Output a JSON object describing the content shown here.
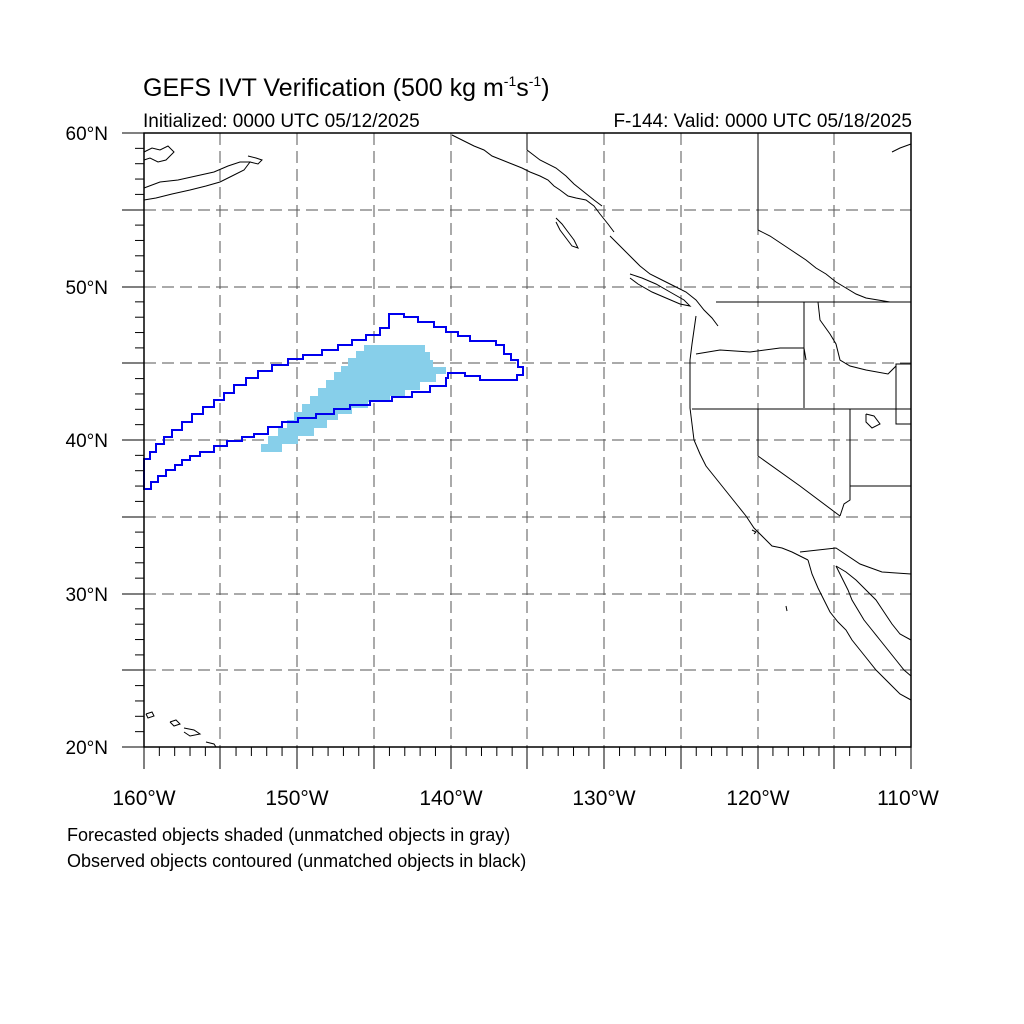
{
  "title": {
    "main": "GEFS IVT Verification (500 kg m",
    "sup1": "-1",
    "mid": "s",
    "sup2": "-1",
    "end": ")"
  },
  "subtitle": {
    "initialized": "Initialized: 0000 UTC 05/12/2025",
    "valid": "F-144: Valid: 0000 UTC 05/18/2025"
  },
  "map": {
    "lon_range": [
      -160,
      -110
    ],
    "lat_range": [
      20,
      60
    ],
    "lat_labels": [
      "60°N",
      "50°N",
      "40°N",
      "30°N",
      "20°N"
    ],
    "lon_labels": [
      "160°W",
      "150°W",
      "140°W",
      "130°W",
      "120°W",
      "110°W"
    ],
    "grid": "dashed",
    "colors": {
      "forecast_fill": "#87cfea",
      "observed_contour": "#0000ee",
      "coastline": "#000000"
    }
  },
  "notes": {
    "line1": "Forecasted objects shaded (unmatched objects in gray)",
    "line2": "Observed objects contoured (unmatched objects in black)"
  }
}
